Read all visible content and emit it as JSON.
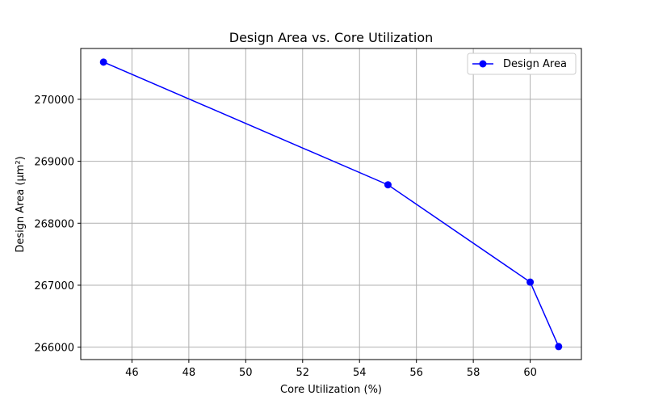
{
  "chart_data": {
    "type": "line",
    "title": "Design Area vs. Core Utilization",
    "xlabel": "Core Utilization (%)",
    "ylabel": "Design Area (µm²)",
    "xlim": [
      44.2,
      61.8
    ],
    "ylim": [
      265800,
      270820
    ],
    "xticks": [
      46,
      48,
      50,
      52,
      54,
      56,
      58,
      60
    ],
    "yticks": [
      266000,
      267000,
      268000,
      269000,
      270000
    ],
    "grid": true,
    "legend_position": "top-right",
    "series": [
      {
        "name": "Design Area",
        "color": "#0000ff",
        "marker": "circle",
        "x": [
          45,
          55,
          60,
          61
        ],
        "y": [
          270600,
          268620,
          267050,
          266010
        ]
      }
    ]
  }
}
